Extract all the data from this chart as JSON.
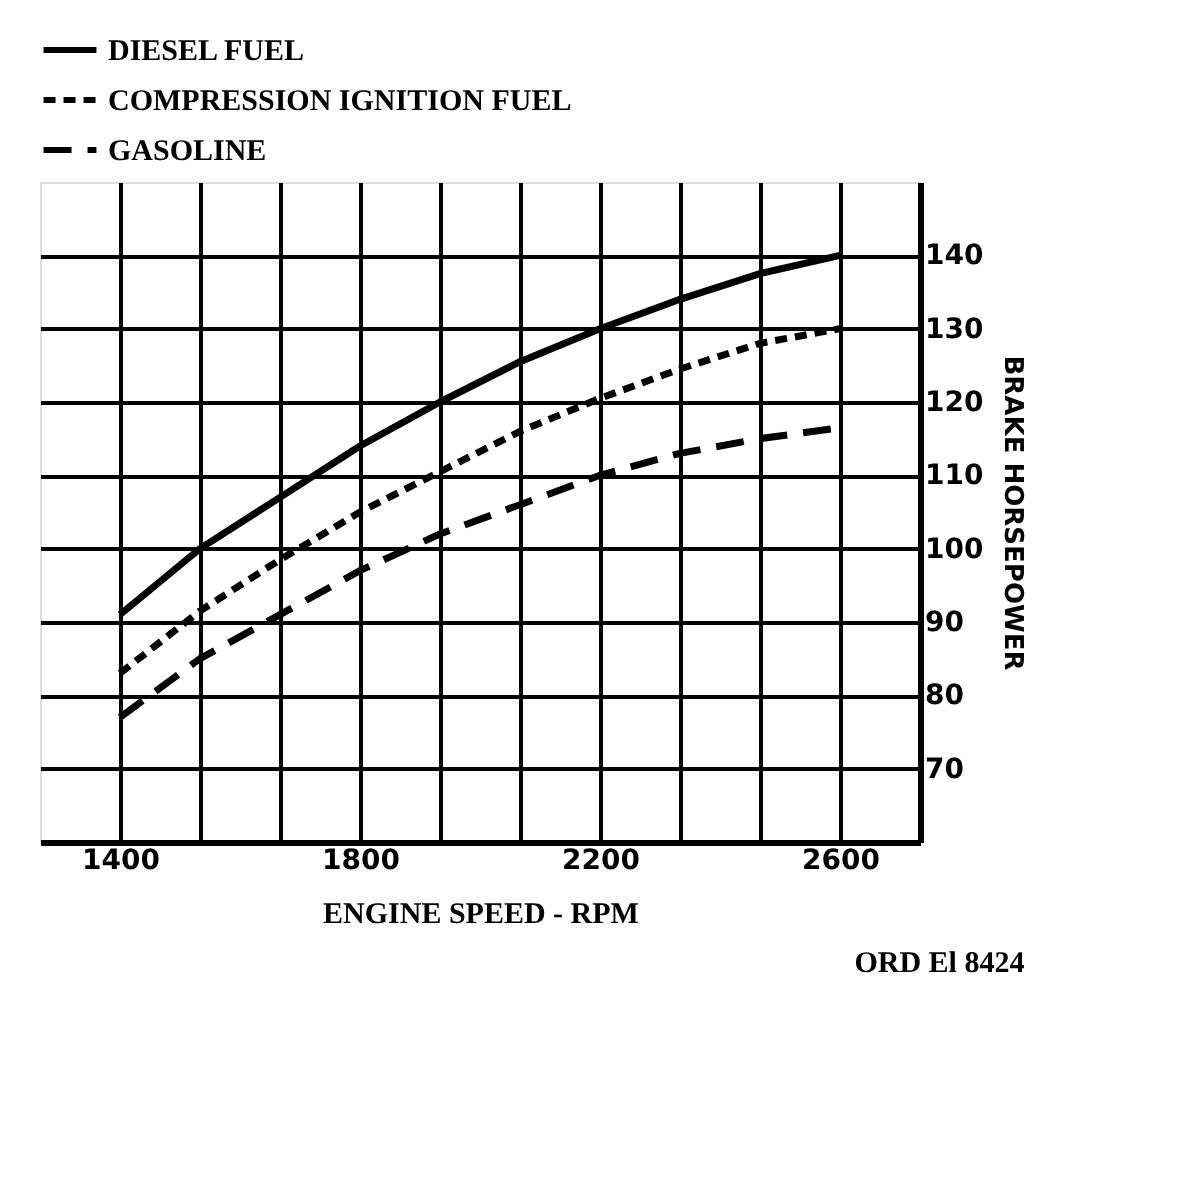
{
  "chart_data": {
    "type": "line",
    "xlabel": "ENGINE SPEED - RPM",
    "ylabel": "BRAKE HORSEPOWER",
    "annotations": [
      "ORD El 8424"
    ],
    "xlim": [
      1266.7,
      2733.3
    ],
    "xticks": [
      1400,
      {
        "value": 1533.3,
        "label": null
      },
      {
        "value": 1666.7,
        "label": null
      },
      1800,
      {
        "value": 1933.3,
        "label": null
      },
      {
        "value": 2066.7,
        "label": null
      },
      2200,
      {
        "value": 2333.3,
        "label": null
      },
      {
        "value": 2466.7,
        "label": null
      },
      2600
    ],
    "ylim": [
      60,
      150
    ],
    "yticks": [
      70,
      80,
      90,
      100,
      110,
      120,
      130,
      140
    ],
    "grid": true,
    "legend": "top",
    "marker": "none",
    "x": [
      1400,
      1533.3,
      1666.7,
      1800,
      1933.3,
      2066.7,
      2200,
      2333.3,
      2466.7,
      2600
    ],
    "series": [
      {
        "name": "DIESEL FUEL",
        "color": "#000000",
        "line_style": "solid",
        "values": [
          91,
          100,
          107,
          114,
          120,
          125.5,
          130,
          134,
          137.5,
          140
        ]
      },
      {
        "name": "COMPRESSION IGNITION FUEL",
        "color": "#000000",
        "line_style": "dashed",
        "values": [
          83,
          91.5,
          98.5,
          105,
          110.5,
          116,
          120.5,
          124.5,
          128,
          130
        ]
      },
      {
        "name": "GASOLINE",
        "color": "#000000",
        "line_style": "dashed",
        "values": [
          77,
          85,
          91,
          97,
          102,
          106,
          110,
          113,
          115,
          116.5
        ]
      }
    ]
  }
}
